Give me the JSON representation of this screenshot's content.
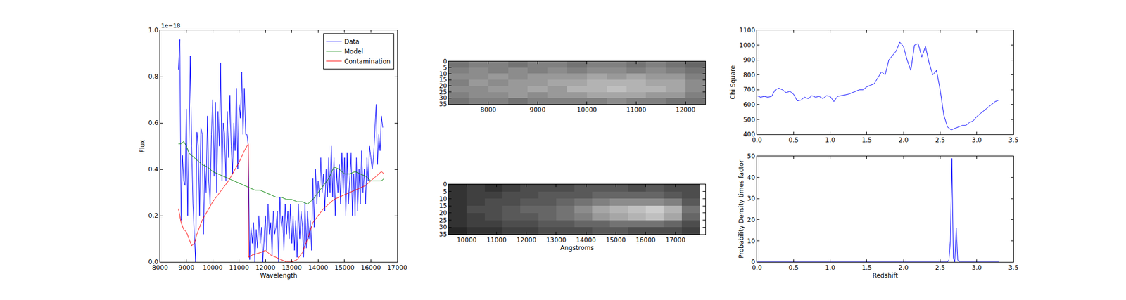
{
  "chart_data": [
    {
      "type": "line",
      "x_label": "Wavelength",
      "y_label": "Flux",
      "legend": "upper right",
      "annotations": [
        "1e−18"
      ],
      "xlim": [
        8000,
        17000
      ],
      "xticks": [
        8000,
        9000,
        10000,
        11000,
        12000,
        13000,
        14000,
        15000,
        16000,
        17000
      ],
      "ylim": [
        0,
        1.0
      ],
      "yticks": [
        {
          "value": 0,
          "label": "0.0"
        },
        {
          "value": 0.2,
          "label": "0.2"
        },
        {
          "value": 0.4,
          "label": "0.4"
        },
        {
          "value": 0.6,
          "label": "0.6"
        },
        {
          "value": 0.8,
          "label": "0.8"
        },
        {
          "value": 1.0,
          "label": "1.0"
        }
      ],
      "series": [
        {
          "name": "Data",
          "color": "#0000ff",
          "x": [
            8700,
            8750,
            8800,
            8850,
            8900,
            8950,
            9000,
            9050,
            9100,
            9150,
            9200,
            9250,
            9300,
            9350,
            9400,
            9450,
            9500,
            9550,
            9600,
            9650,
            9700,
            9750,
            9800,
            9850,
            9900,
            9950,
            10000,
            10050,
            10100,
            10150,
            10200,
            10250,
            10300,
            10350,
            10400,
            10450,
            10500,
            10550,
            10600,
            10650,
            10700,
            10750,
            10800,
            10850,
            10900,
            10950,
            11000,
            11050,
            11100,
            11150,
            11200,
            11250,
            11300,
            11350,
            11400,
            11450,
            11500,
            11550,
            11600,
            11650,
            11700,
            11750,
            11800,
            11850,
            11900,
            11950,
            12000,
            12050,
            12100,
            12150,
            12200,
            12250,
            12300,
            12350,
            12400,
            12450,
            12500,
            12550,
            12600,
            12650,
            12700,
            12750,
            12800,
            12850,
            12900,
            12950,
            13000,
            13050,
            13100,
            13150,
            13200,
            13250,
            13300,
            13350,
            13400,
            13450,
            13500,
            13550,
            13600,
            13650,
            13700,
            13750,
            13800,
            13850,
            13900,
            13950,
            14000,
            14050,
            14100,
            14150,
            14200,
            14250,
            14300,
            14350,
            14400,
            14450,
            14500,
            14550,
            14600,
            14650,
            14700,
            14750,
            14800,
            14850,
            14900,
            14950,
            15000,
            15050,
            15100,
            15150,
            15200,
            15250,
            15300,
            15350,
            15400,
            15450,
            15500,
            15550,
            15600,
            15650,
            15700,
            15750,
            15800,
            15850,
            15900,
            15950,
            16000,
            16050,
            16100,
            16200,
            16250,
            16300,
            16350,
            16400,
            16450
          ],
          "values": [
            0.83,
            0.96,
            0.18,
            0.46,
            0.35,
            0.33,
            0.66,
            0.2,
            0.52,
            0.89,
            0.5,
            0.25,
            0.12,
            0.0,
            0.56,
            0.5,
            0.2,
            0.58,
            0.55,
            0.12,
            0.42,
            0.3,
            0.63,
            0.35,
            0.25,
            0.55,
            0.7,
            0.37,
            0.69,
            0.3,
            0.65,
            0.5,
            0.86,
            0.35,
            0.6,
            0.55,
            0.35,
            0.65,
            0.45,
            0.72,
            0.5,
            0.38,
            0.6,
            0.48,
            0.75,
            0.4,
            0.68,
            0.62,
            0.82,
            0.55,
            0.75,
            0.55,
            0.55,
            0.5,
            0.01,
            0.15,
            0.08,
            0.17,
            0.0,
            0.14,
            0.06,
            0.2,
            0.08,
            0.15,
            0.0,
            0.1,
            0.2,
            0.05,
            0.25,
            0.12,
            0.17,
            0.03,
            0.22,
            0.12,
            0.15,
            0.22,
            0.0,
            0.28,
            0.15,
            0.2,
            0.05,
            0.25,
            0.12,
            0.22,
            0.1,
            0.25,
            0.08,
            0.2,
            0.05,
            0.18,
            0.02,
            0.25,
            0.1,
            0.22,
            0.15,
            0.02,
            0.26,
            0.06,
            0.22,
            0.1,
            0.18,
            0.05,
            0.36,
            0.15,
            0.4,
            0.25,
            0.35,
            0.28,
            0.45,
            0.3,
            0.38,
            0.22,
            0.4,
            0.28,
            0.45,
            0.3,
            0.5,
            0.28,
            0.45,
            0.2,
            0.4,
            0.3,
            0.42,
            0.25,
            0.47,
            0.3,
            0.45,
            0.2,
            0.47,
            0.25,
            0.35,
            0.47,
            0.2,
            0.38,
            0.2,
            0.45,
            0.22,
            0.4,
            0.25,
            0.48,
            0.3,
            0.4,
            0.25,
            0.45,
            0.35,
            0.5,
            0.45,
            0.4,
            0.45,
            0.68,
            0.42,
            0.55,
            0.48,
            0.63,
            0.58
          ]
        },
        {
          "name": "Model",
          "color": "#008000",
          "x": [
            8700,
            8800,
            8900,
            9000,
            9100,
            9200,
            9300,
            9400,
            9500,
            9600,
            9800,
            10000,
            10200,
            10400,
            10600,
            10800,
            11000,
            11200,
            11400,
            11600,
            11800,
            12000,
            12200,
            12400,
            12600,
            12800,
            13000,
            13200,
            13400,
            13600,
            13800,
            14000,
            14200,
            14400,
            14600,
            14800,
            15000,
            15200,
            15400,
            15600,
            15800,
            16000,
            16200,
            16400,
            16500
          ],
          "values": [
            0.51,
            0.51,
            0.52,
            0.5,
            0.47,
            0.46,
            0.45,
            0.44,
            0.43,
            0.42,
            0.41,
            0.39,
            0.38,
            0.37,
            0.36,
            0.35,
            0.34,
            0.33,
            0.32,
            0.31,
            0.31,
            0.3,
            0.29,
            0.28,
            0.28,
            0.27,
            0.27,
            0.26,
            0.26,
            0.25,
            0.27,
            0.3,
            0.33,
            0.36,
            0.41,
            0.4,
            0.38,
            0.38,
            0.39,
            0.38,
            0.37,
            0.35,
            0.35,
            0.35,
            0.36
          ]
        },
        {
          "name": "Contamination",
          "color": "#ff0000",
          "x": [
            8700,
            8800,
            8900,
            9000,
            9100,
            9200,
            9300,
            9400,
            9500,
            9600,
            9800,
            10000,
            10200,
            10400,
            10600,
            10800,
            11000,
            11200,
            11350,
            11360,
            11500,
            11800,
            12000,
            12200,
            12400,
            12600,
            12800,
            13000,
            13200,
            13400,
            13600,
            13800,
            14000,
            14200,
            14400,
            14600,
            14800,
            15000,
            15200,
            15400,
            15600,
            15800,
            16000,
            16200,
            16400,
            16500
          ],
          "values": [
            0.23,
            0.17,
            0.14,
            0.13,
            0.1,
            0.07,
            0.08,
            0.12,
            0.15,
            0.18,
            0.22,
            0.26,
            0.29,
            0.32,
            0.35,
            0.39,
            0.43,
            0.48,
            0.51,
            0.02,
            0.03,
            0.04,
            0.05,
            0.03,
            0.02,
            0.01,
            0.0,
            0.0,
            0.01,
            0.04,
            0.1,
            0.17,
            0.2,
            0.23,
            0.25,
            0.27,
            0.28,
            0.29,
            0.3,
            0.31,
            0.32,
            0.33,
            0.35,
            0.37,
            0.39,
            0.38
          ]
        }
      ]
    },
    {
      "type": "heatmap",
      "xlim": [
        7200,
        12400
      ],
      "xticks": [
        8000,
        9000,
        10000,
        11000,
        12000
      ],
      "ylim": [
        35,
        0
      ],
      "yticks": [
        0,
        5,
        10,
        15,
        20,
        25,
        30,
        35
      ],
      "zlim": [
        0,
        1
      ],
      "x": [
        7400,
        7800,
        8200,
        8600,
        9000,
        9400,
        9800,
        10200,
        10600,
        11000,
        11400,
        11800,
        12200
      ],
      "y": [
        2.5,
        7.5,
        12.5,
        17.5,
        22.5,
        27.5,
        32.5
      ],
      "z": [
        [
          0.45,
          0.5,
          0.5,
          0.45,
          0.5,
          0.5,
          0.45,
          0.5,
          0.5,
          0.45,
          0.5,
          0.45,
          0.4
        ],
        [
          0.5,
          0.55,
          0.5,
          0.55,
          0.5,
          0.55,
          0.5,
          0.55,
          0.55,
          0.5,
          0.55,
          0.5,
          0.45
        ],
        [
          0.55,
          0.55,
          0.6,
          0.55,
          0.6,
          0.6,
          0.6,
          0.65,
          0.6,
          0.65,
          0.6,
          0.6,
          0.5
        ],
        [
          0.5,
          0.6,
          0.55,
          0.6,
          0.6,
          0.65,
          0.65,
          0.7,
          0.7,
          0.7,
          0.65,
          0.65,
          0.55
        ],
        [
          0.55,
          0.55,
          0.6,
          0.6,
          0.65,
          0.6,
          0.7,
          0.7,
          0.75,
          0.7,
          0.7,
          0.65,
          0.55
        ],
        [
          0.5,
          0.55,
          0.55,
          0.6,
          0.55,
          0.6,
          0.6,
          0.65,
          0.65,
          0.65,
          0.6,
          0.6,
          0.5
        ],
        [
          0.45,
          0.5,
          0.5,
          0.45,
          0.5,
          0.5,
          0.5,
          0.5,
          0.55,
          0.5,
          0.5,
          0.45,
          0.45
        ]
      ]
    },
    {
      "type": "heatmap",
      "x_label": "Angstroms",
      "xlim": [
        9400,
        18000
      ],
      "xticks": [
        10000,
        11000,
        12000,
        13000,
        14000,
        15000,
        16000,
        17000
      ],
      "ylim": [
        35,
        0
      ],
      "yticks": [
        0,
        5,
        10,
        15,
        20,
        25,
        30,
        35
      ],
      "zlim": [
        0,
        1
      ],
      "x": [
        9700,
        10300,
        10900,
        11500,
        12100,
        12700,
        13300,
        13900,
        14500,
        15100,
        15700,
        16300,
        16900,
        17500
      ],
      "y": [
        2.5,
        7.5,
        12.5,
        17.5,
        22.5,
        27.5,
        32.5
      ],
      "z": [
        [
          0.2,
          0.25,
          0.2,
          0.25,
          0.3,
          0.3,
          0.3,
          0.35,
          0.35,
          0.35,
          0.3,
          0.35,
          0.3,
          0.3
        ],
        [
          0.2,
          0.25,
          0.25,
          0.3,
          0.3,
          0.35,
          0.35,
          0.35,
          0.4,
          0.4,
          0.4,
          0.4,
          0.35,
          0.3
        ],
        [
          0.2,
          0.25,
          0.3,
          0.3,
          0.35,
          0.35,
          0.4,
          0.45,
          0.5,
          0.55,
          0.55,
          0.55,
          0.5,
          0.35
        ],
        [
          0.2,
          0.3,
          0.3,
          0.35,
          0.4,
          0.4,
          0.45,
          0.55,
          0.65,
          0.7,
          0.75,
          0.8,
          0.7,
          0.45
        ],
        [
          0.2,
          0.25,
          0.3,
          0.35,
          0.35,
          0.4,
          0.45,
          0.5,
          0.6,
          0.65,
          0.7,
          0.75,
          0.65,
          0.4
        ],
        [
          0.2,
          0.25,
          0.25,
          0.3,
          0.3,
          0.35,
          0.35,
          0.4,
          0.4,
          0.45,
          0.45,
          0.45,
          0.4,
          0.3
        ],
        [
          0.15,
          0.2,
          0.2,
          0.25,
          0.25,
          0.3,
          0.3,
          0.3,
          0.35,
          0.35,
          0.3,
          0.3,
          0.3,
          0.25
        ]
      ]
    },
    {
      "type": "line",
      "y_label": "Chi Square",
      "xlim": [
        0,
        3.5
      ],
      "xticks": [
        {
          "value": 0,
          "label": "0.0"
        },
        {
          "value": 0.5,
          "label": "0.5"
        },
        {
          "value": 1.0,
          "label": "1.0"
        },
        {
          "value": 1.5,
          "label": "1.5"
        },
        {
          "value": 2.0,
          "label": "2.0"
        },
        {
          "value": 2.5,
          "label": "2.5"
        },
        {
          "value": 3.0,
          "label": "3.0"
        },
        {
          "value": 3.5,
          "label": "3.5"
        }
      ],
      "ylim": [
        400,
        1100
      ],
      "yticks": [
        400,
        500,
        600,
        700,
        800,
        900,
        1000,
        1100
      ],
      "series": [
        {
          "color": "#0000ff",
          "x": [
            0,
            0.05,
            0.1,
            0.15,
            0.2,
            0.25,
            0.3,
            0.35,
            0.4,
            0.45,
            0.5,
            0.55,
            0.6,
            0.65,
            0.7,
            0.75,
            0.8,
            0.85,
            0.9,
            0.95,
            1.0,
            1.05,
            1.1,
            1.15,
            1.2,
            1.25,
            1.3,
            1.35,
            1.4,
            1.45,
            1.5,
            1.55,
            1.6,
            1.65,
            1.7,
            1.75,
            1.8,
            1.85,
            1.9,
            1.95,
            2.0,
            2.05,
            2.1,
            2.15,
            2.2,
            2.25,
            2.3,
            2.35,
            2.4,
            2.45,
            2.5,
            2.55,
            2.6,
            2.65,
            2.7,
            2.75,
            2.8,
            2.85,
            2.9,
            2.95,
            3.0,
            3.05,
            3.1,
            3.15,
            3.2,
            3.25,
            3.3
          ],
          "values": [
            660,
            650,
            655,
            650,
            655,
            700,
            710,
            700,
            680,
            690,
            670,
            625,
            630,
            650,
            640,
            660,
            650,
            655,
            640,
            660,
            655,
            620,
            655,
            660,
            665,
            670,
            680,
            690,
            700,
            700,
            720,
            730,
            740,
            780,
            820,
            800,
            900,
            930,
            960,
            1020,
            990,
            900,
            830,
            1000,
            1010,
            920,
            990,
            880,
            800,
            830,
            700,
            530,
            450,
            430,
            440,
            450,
            460,
            460,
            480,
            490,
            520,
            540,
            560,
            580,
            600,
            620,
            630
          ]
        }
      ]
    },
    {
      "type": "line",
      "x_label": "Redshift",
      "y_label": "Probability Density times factor",
      "xlim": [
        0,
        3.5
      ],
      "xticks": [
        {
          "value": 0,
          "label": "0.0"
        },
        {
          "value": 0.5,
          "label": "0.5"
        },
        {
          "value": 1.0,
          "label": "1.0"
        },
        {
          "value": 1.5,
          "label": "1.5"
        },
        {
          "value": 2.0,
          "label": "2.0"
        },
        {
          "value": 2.5,
          "label": "2.5"
        },
        {
          "value": 3.0,
          "label": "3.0"
        },
        {
          "value": 3.5,
          "label": "3.5"
        }
      ],
      "ylim": [
        0,
        50
      ],
      "yticks": [
        0,
        10,
        20,
        30,
        40,
        50
      ],
      "series": [
        {
          "color": "#0000ff",
          "x": [
            0,
            2.6,
            2.62,
            2.64,
            2.66,
            2.68,
            2.7,
            2.72,
            2.74,
            2.76,
            3.3
          ],
          "values": [
            0,
            0,
            1,
            10,
            49,
            2,
            0,
            16,
            1,
            0,
            0
          ]
        }
      ]
    }
  ]
}
